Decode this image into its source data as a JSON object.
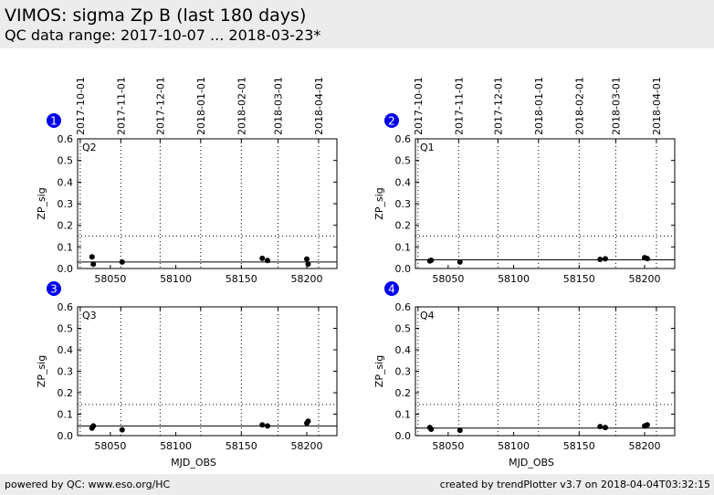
{
  "header": {
    "title": "VIMOS: sigma Zp B (last 180 days)",
    "subtitle": "QC data range: 2017-10-07 ... 2018-03-23*"
  },
  "footer": {
    "left": "powered by QC: www.eso.org/HC",
    "right": "created by trendPlotter v3.7 on 2018-04-04T03:32:15"
  },
  "colors": {
    "badge": "#0000ee",
    "points": "#000000",
    "frame": "#000000"
  },
  "chart_data": [
    {
      "type": "scatter",
      "badge": "1",
      "label": "Q2",
      "xlabel": "",
      "ylabel": "ZP_sig",
      "xlim": [
        58025,
        58223
      ],
      "ylim": [
        0,
        0.6
      ],
      "x_ticks": [
        58050,
        58100,
        58150,
        58200
      ],
      "y_ticks": [
        "0.0",
        "0.1",
        "0.2",
        "0.3",
        "0.4",
        "0.5",
        "0.6"
      ],
      "date_ticks": [
        "2017-10-01",
        "2017-11-01",
        "2017-12-01",
        "2018-01-01",
        "2018-02-01",
        "2018-03-01",
        "2018-04-01"
      ],
      "date_mjd": [
        58027,
        58058,
        58088,
        58119,
        58150,
        58178,
        58209
      ],
      "x": [
        58036,
        58037,
        58059,
        58166,
        58170,
        58200,
        58201
      ],
      "y": [
        0.054,
        0.02,
        0.03,
        0.047,
        0.037,
        0.044,
        0.02
      ],
      "reference_line": 0.03,
      "threshold_line": 0.15
    },
    {
      "type": "scatter",
      "badge": "2",
      "label": "Q1",
      "xlabel": "",
      "ylabel": "ZP_sig",
      "xlim": [
        58025,
        58223
      ],
      "ylim": [
        0,
        0.6
      ],
      "x_ticks": [
        58050,
        58100,
        58150,
        58200
      ],
      "y_ticks": [
        "0.0",
        "0.1",
        "0.2",
        "0.3",
        "0.4",
        "0.5",
        "0.6"
      ],
      "date_ticks": [
        "2017-10-01",
        "2017-11-01",
        "2017-12-01",
        "2018-01-01",
        "2018-02-01",
        "2018-03-01",
        "2018-04-01"
      ],
      "date_mjd": [
        58027,
        58058,
        58088,
        58119,
        58150,
        58178,
        58209
      ],
      "x": [
        58036,
        58037,
        58059,
        58166,
        58170,
        58200,
        58202
      ],
      "y": [
        0.035,
        0.038,
        0.03,
        0.042,
        0.045,
        0.05,
        0.046
      ],
      "reference_line": 0.04,
      "threshold_line": 0.15
    },
    {
      "type": "scatter",
      "badge": "3",
      "label": "Q3",
      "xlabel": "MJD_OBS",
      "ylabel": "ZP_sig",
      "xlim": [
        58025,
        58223
      ],
      "ylim": [
        0,
        0.6
      ],
      "x_ticks": [
        58050,
        58100,
        58150,
        58200
      ],
      "y_ticks": [
        "0.0",
        "0.1",
        "0.2",
        "0.3",
        "0.4",
        "0.5",
        "0.6"
      ],
      "date_ticks": [],
      "date_mjd": [
        58027,
        58058,
        58088,
        58119,
        58150,
        58178,
        58209
      ],
      "x": [
        58036,
        58037,
        58059,
        58166,
        58170,
        58200,
        58201
      ],
      "y": [
        0.035,
        0.045,
        0.027,
        0.05,
        0.045,
        0.058,
        0.067
      ],
      "reference_line": 0.045,
      "threshold_line": 0.145
    },
    {
      "type": "scatter",
      "badge": "4",
      "label": "Q4",
      "xlabel": "MJD_OBS",
      "ylabel": "ZP_sig",
      "xlim": [
        58025,
        58223
      ],
      "ylim": [
        0,
        0.6
      ],
      "x_ticks": [
        58050,
        58100,
        58150,
        58200
      ],
      "y_ticks": [
        "0.0",
        "0.1",
        "0.2",
        "0.3",
        "0.4",
        "0.5",
        "0.6"
      ],
      "date_ticks": [],
      "date_mjd": [
        58027,
        58058,
        58088,
        58119,
        58150,
        58178,
        58209
      ],
      "x": [
        58036,
        58037,
        58059,
        58166,
        58170,
        58200,
        58202
      ],
      "y": [
        0.038,
        0.03,
        0.025,
        0.042,
        0.038,
        0.045,
        0.05
      ],
      "reference_line": 0.035,
      "threshold_line": 0.145
    }
  ]
}
